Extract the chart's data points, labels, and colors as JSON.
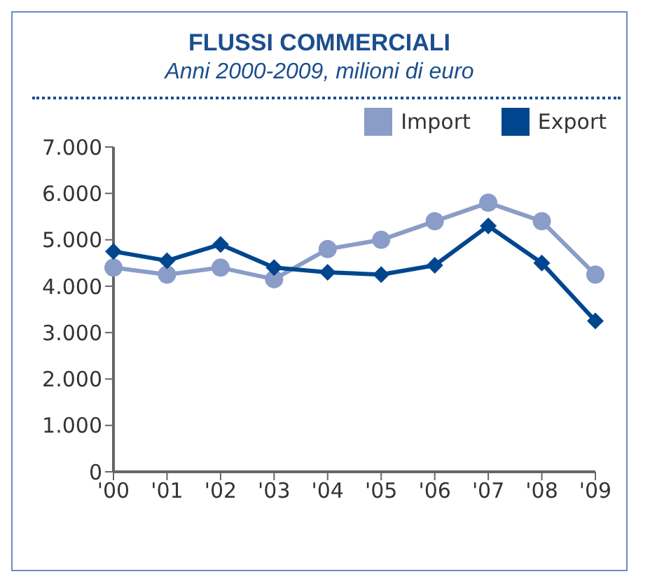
{
  "chart_data": {
    "type": "line",
    "title": "FLUSSI COMMERCIALI",
    "subtitle": "Anni 2000-2009, milioni di euro",
    "categories": [
      "'00",
      "'01",
      "'02",
      "'03",
      "'04",
      "'05",
      "'06",
      "'07",
      "'08",
      "'09"
    ],
    "series": [
      {
        "name": "Import",
        "color": "#8a9cc8",
        "marker": "circle",
        "values": [
          4400,
          4250,
          4400,
          4150,
          4800,
          5000,
          5400,
          5800,
          5400,
          4250
        ]
      },
      {
        "name": "Export",
        "color": "#00468e",
        "marker": "diamond",
        "values": [
          4750,
          4550,
          4900,
          4400,
          4300,
          4250,
          4450,
          5300,
          4500,
          3250
        ]
      }
    ],
    "ylim": [
      0,
      7000
    ],
    "yticks": [
      {
        "value": 0,
        "label": "0"
      },
      {
        "value": 1000,
        "label": "1.000"
      },
      {
        "value": 2000,
        "label": "2.000"
      },
      {
        "value": 3000,
        "label": "3.000"
      },
      {
        "value": 4000,
        "label": "4.000"
      },
      {
        "value": 5000,
        "label": "5.000"
      },
      {
        "value": 6000,
        "label": "6.000"
      },
      {
        "value": 7000,
        "label": "7.000"
      }
    ],
    "grid": false,
    "legend": "top right"
  }
}
